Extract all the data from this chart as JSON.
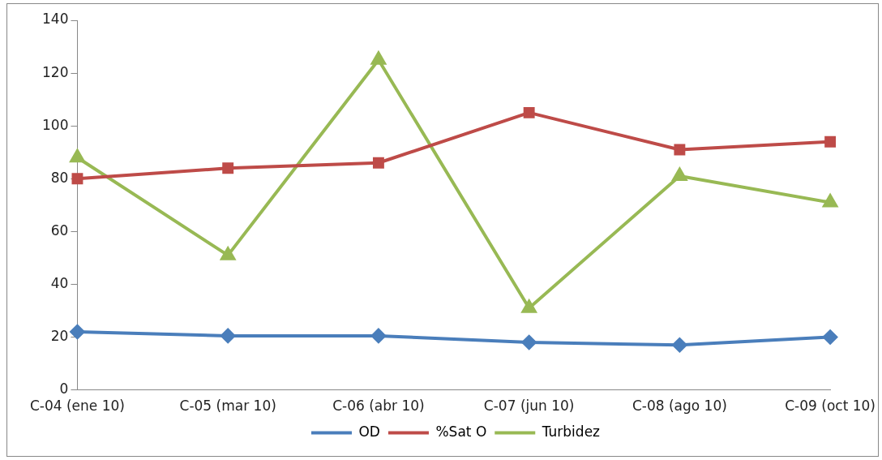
{
  "chart_data": {
    "type": "line",
    "categories": [
      "C-04 (ene 10)",
      "C-05 (mar 10)",
      "C-06 (abr 10)",
      "C-07 (jun 10)",
      "C-08 (ago 10)",
      "C-09 (oct 10)"
    ],
    "series": [
      {
        "name": "OD",
        "color": "#4a7ebb",
        "marker": "diamond",
        "values": [
          22,
          20.5,
          20.5,
          18,
          17,
          20
        ]
      },
      {
        "name": "%Sat O",
        "color": "#be4b48",
        "marker": "square",
        "values": [
          80,
          84,
          86,
          105,
          91,
          94
        ]
      },
      {
        "name": "Turbidez",
        "color": "#98b954",
        "marker": "triangle",
        "values": [
          88,
          51,
          125,
          31,
          81,
          71
        ]
      }
    ],
    "ylim": [
      0,
      140
    ],
    "yticks": [
      0,
      20,
      40,
      60,
      80,
      100,
      120,
      140
    ],
    "grid": false,
    "legend": "bottom"
  }
}
